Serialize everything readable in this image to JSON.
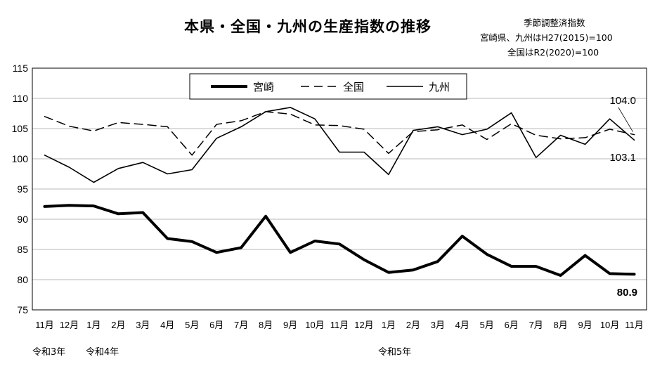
{
  "header": {
    "title": "本県・全国・九州の生産指数の推移",
    "note_line1": "季節調整済指数",
    "note_line2": "宮崎県、九州はH27(2015)=100",
    "note_line3": "全国はR2(2020)=100"
  },
  "era_labels": [
    "令和3年",
    "令和4年",
    "令和5年"
  ],
  "chart_data": {
    "type": "line",
    "title": "本県・全国・九州の生産指数の推移",
    "categories": [
      "11月",
      "12月",
      "1月",
      "2月",
      "3月",
      "4月",
      "5月",
      "6月",
      "7月",
      "8月",
      "9月",
      "10月",
      "11月",
      "12月",
      "1月",
      "2月",
      "3月",
      "4月",
      "5月",
      "6月",
      "7月",
      "8月",
      "9月",
      "10月",
      "11月"
    ],
    "ylim": [
      75,
      115
    ],
    "yticks": [
      75,
      80,
      85,
      90,
      95,
      100,
      105,
      110,
      115
    ],
    "grid": true,
    "legend_position": "top-center",
    "series": [
      {
        "name": "宮崎",
        "style": "thick-solid",
        "color": "#000000",
        "values": [
          92.1,
          92.3,
          92.2,
          90.9,
          91.1,
          86.8,
          86.3,
          84.5,
          85.3,
          90.5,
          84.5,
          86.4,
          85.9,
          83.3,
          81.2,
          81.6,
          83.0,
          87.2,
          84.2,
          82.2,
          82.2,
          80.7,
          84.0,
          81.0,
          80.9
        ]
      },
      {
        "name": "全国",
        "style": "dashed",
        "color": "#000000",
        "values": [
          107.0,
          105.4,
          104.6,
          106.0,
          105.7,
          105.3,
          100.6,
          105.7,
          106.3,
          107.8,
          107.4,
          105.6,
          105.5,
          104.9,
          100.9,
          104.5,
          104.8,
          105.6,
          103.2,
          105.8,
          103.9,
          103.3,
          103.5,
          104.9,
          104.0
        ]
      },
      {
        "name": "九州",
        "style": "thin-solid",
        "color": "#000000",
        "values": [
          100.6,
          98.6,
          96.1,
          98.4,
          99.4,
          97.5,
          98.2,
          103.4,
          105.3,
          107.8,
          108.5,
          106.6,
          101.1,
          101.1,
          97.4,
          104.7,
          105.3,
          104.0,
          104.9,
          107.6,
          100.2,
          103.9,
          102.4,
          106.6,
          103.1
        ]
      }
    ],
    "annotations": [
      "104.0",
      "103.1",
      "80.9"
    ]
  }
}
